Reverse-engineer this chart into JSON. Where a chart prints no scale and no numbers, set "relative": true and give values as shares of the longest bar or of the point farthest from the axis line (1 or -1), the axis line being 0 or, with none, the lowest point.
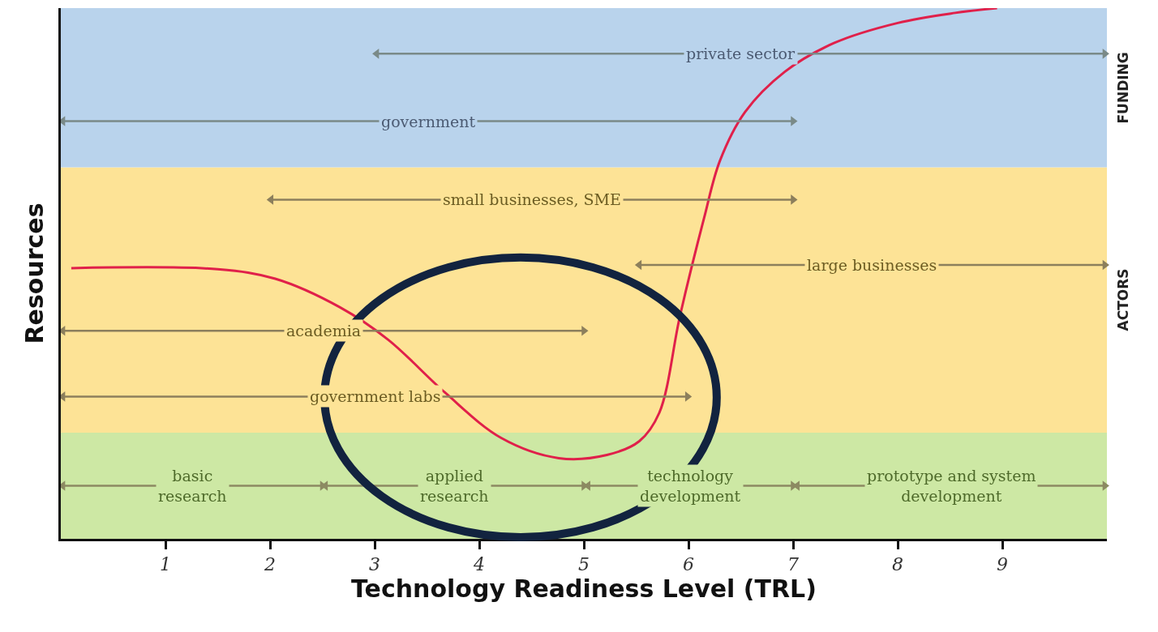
{
  "chart_data": {
    "type": "line",
    "relative": true,
    "xlabel": "Technology Readiness Level (TRL)",
    "ylabel": "Resources",
    "xlim": [
      0,
      10
    ],
    "xticks": [
      1,
      2,
      3,
      4,
      5,
      6,
      7,
      8,
      9
    ],
    "grid": false,
    "legend": false,
    "marker": "none",
    "line_style": "solid",
    "bands": [
      {
        "axis": "y",
        "from": 0,
        "to": 0.2,
        "label": null,
        "color": "#cde8a4"
      },
      {
        "axis": "y",
        "from": 0.2,
        "to": 0.7,
        "label": "ACTORS",
        "color": "#fde396"
      },
      {
        "axis": "y",
        "from": 0.7,
        "to": 1.0,
        "label": "FUNDING",
        "color": "#b9d3ec"
      }
    ],
    "series": [
      {
        "color": "#e0204a",
        "x": [
          0.1,
          1.5,
          2.05,
          2.67,
          3.13,
          3.67,
          4.21,
          4.76,
          5.22,
          5.53,
          5.72,
          5.92,
          6.15,
          6.3,
          6.54,
          6.92,
          7.39,
          8.0,
          8.55,
          8.95
        ],
        "values": [
          0.51,
          0.508,
          0.49,
          0.436,
          0.375,
          0.276,
          0.19,
          0.152,
          0.158,
          0.184,
          0.237,
          0.421,
          0.605,
          0.712,
          0.804,
          0.88,
          0.934,
          0.972,
          0.991,
          1.0
        ]
      },
      {
        "name": "private sector",
        "color": "#7a8a88",
        "marker": "triangle",
        "x": [
          3.02,
          9.98
        ],
        "values": [
          0.914,
          0.914
        ]
      },
      {
        "name": "government",
        "color": "#7a8a88",
        "marker": "triangle",
        "x": [
          0.02,
          7.0
        ],
        "values": [
          0.787,
          0.787
        ]
      },
      {
        "name": "small businesses, SME",
        "color": "#8c7f5c",
        "marker": "triangle",
        "x": [
          2.01,
          7.0
        ],
        "values": [
          0.639,
          0.639
        ]
      },
      {
        "name": "large businesses",
        "color": "#8c7f5c",
        "marker": "triangle",
        "x": [
          5.53,
          9.98
        ],
        "values": [
          0.516,
          0.516
        ]
      },
      {
        "name": "academia",
        "color": "#8c7f5c",
        "marker": "triangle",
        "x": [
          0.02,
          5.0
        ],
        "values": [
          0.392,
          0.392
        ]
      },
      {
        "name": "government labs",
        "color": "#8c7f5c",
        "marker": "triangle",
        "x": [
          0.02,
          5.99
        ],
        "values": [
          0.268,
          0.268
        ]
      },
      {
        "name": "basic research",
        "color": "#8c8a62",
        "marker": "triangle",
        "x": [
          0.02,
          2.5
        ],
        "values": [
          0.1,
          0.1
        ]
      },
      {
        "name": "applied research",
        "color": "#8c8a62",
        "marker": "triangle",
        "x": [
          2.53,
          5.0
        ],
        "values": [
          0.1,
          0.1
        ]
      },
      {
        "name": "technology development",
        "color": "#8c8a62",
        "marker": "triangle",
        "x": [
          5.04,
          7.0
        ],
        "values": [
          0.1,
          0.1
        ]
      },
      {
        "name": "prototype and system development",
        "color": "#8c8a62",
        "marker": "triangle",
        "x": [
          7.04,
          9.98
        ],
        "values": [
          0.1,
          0.1
        ]
      }
    ]
  }
}
